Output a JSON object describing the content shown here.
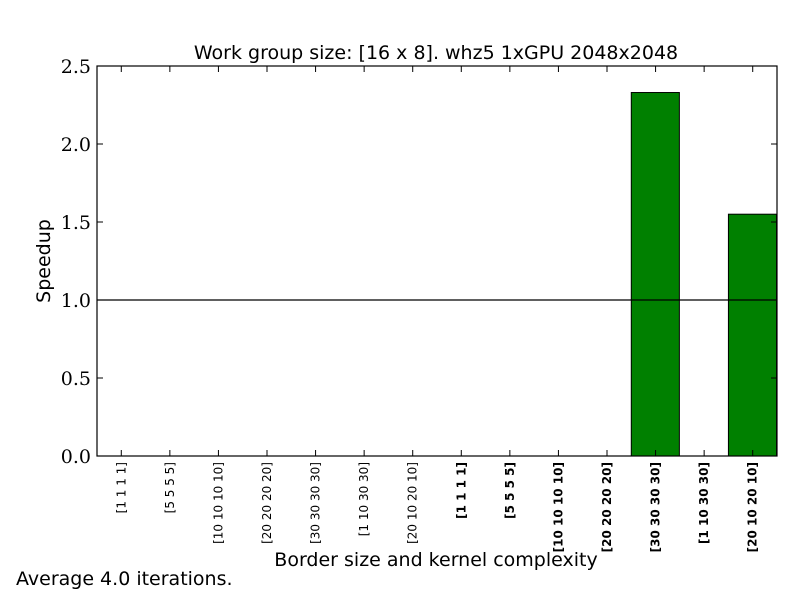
{
  "chart_data": {
    "type": "bar",
    "title": "Work group size: [16 x 8]. whz5 1xGPU 2048x2048",
    "xlabel": "Border size and kernel complexity",
    "ylabel": "Speedup",
    "ylim": [
      0,
      2.5
    ],
    "yticks": [
      "0.0",
      "0.5",
      "1.0",
      "1.5",
      "2.0",
      "2.5"
    ],
    "categories": [
      {
        "label": "[1 1 1 1]",
        "bold": false
      },
      {
        "label": "[5 5 5 5]",
        "bold": false
      },
      {
        "label": "[10 10 10 10]",
        "bold": false
      },
      {
        "label": "[20 20 20 20]",
        "bold": false
      },
      {
        "label": "[30 30 30 30]",
        "bold": false
      },
      {
        "label": "[1 10 30 30]",
        "bold": false
      },
      {
        "label": "[20 10 20 10]",
        "bold": false
      },
      {
        "label": "[1 1 1 1]",
        "bold": true
      },
      {
        "label": "[5 5 5 5]",
        "bold": true
      },
      {
        "label": "[10 10 10 10]",
        "bold": true
      },
      {
        "label": "[20 20 20 20]",
        "bold": true
      },
      {
        "label": "[30 30 30 30]",
        "bold": true
      },
      {
        "label": "[1 10 30 30]",
        "bold": true
      },
      {
        "label": "[20 10 20 10]",
        "bold": true
      }
    ],
    "values": [
      0,
      0,
      0,
      0,
      0,
      0,
      0,
      0,
      0,
      0,
      0,
      2.33,
      0,
      1.55
    ],
    "reference_line": 1.0,
    "bar_color": "#008000",
    "grid": false,
    "legend": "none"
  },
  "footnote": "Average 4.0 iterations."
}
